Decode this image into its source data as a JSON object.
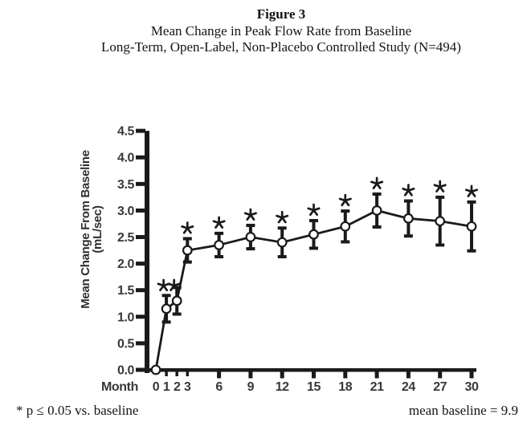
{
  "header": {
    "figure_label": "Figure 3",
    "title": "Mean Change in Peak Flow Rate from Baseline",
    "subtitle": "Long-Term, Open-Label, Non-Placebo Controlled Study (N=494)"
  },
  "chart_data": {
    "type": "line",
    "title": "Mean Change in Peak Flow Rate from Baseline",
    "xlabel": "Month",
    "ylabel_lines": [
      "Mean Change From Baseline",
      "(mL/sec)"
    ],
    "x": [
      0,
      1,
      2,
      3,
      6,
      9,
      12,
      15,
      18,
      21,
      24,
      27,
      30
    ],
    "series": [
      {
        "name": "Mean change from baseline (mL/sec)",
        "values": [
          0.0,
          1.15,
          1.3,
          2.25,
          2.35,
          2.5,
          2.4,
          2.55,
          2.7,
          3.0,
          2.85,
          2.8,
          2.7
        ],
        "error": [
          0,
          0.25,
          0.25,
          0.22,
          0.22,
          0.22,
          0.27,
          0.26,
          0.29,
          0.31,
          0.33,
          0.45,
          0.46
        ],
        "significant": [
          false,
          true,
          true,
          true,
          true,
          true,
          true,
          true,
          true,
          true,
          true,
          true,
          true
        ]
      }
    ],
    "ylim": [
      0.0,
      4.5
    ],
    "yticks": [
      "0.0",
      "0.5",
      "1.0",
      "1.5",
      "2.0",
      "2.5",
      "3.0",
      "3.5",
      "4.0",
      "4.5"
    ],
    "xticks_minor": [
      1,
      2,
      3
    ],
    "xticks_major": [
      6,
      9,
      12,
      15,
      18,
      21,
      24,
      27,
      30
    ],
    "marker": "open-circle",
    "significance_marker": "asterisk",
    "grid": false,
    "legend": "none",
    "colors": {
      "line": "#1a1a1a",
      "marker_fill": "#ffffff",
      "axis_label": "#383838"
    }
  },
  "footer": {
    "significance_note": "* p ≤ 0.05 vs. baseline",
    "baseline_note": "mean baseline = 9.9"
  }
}
